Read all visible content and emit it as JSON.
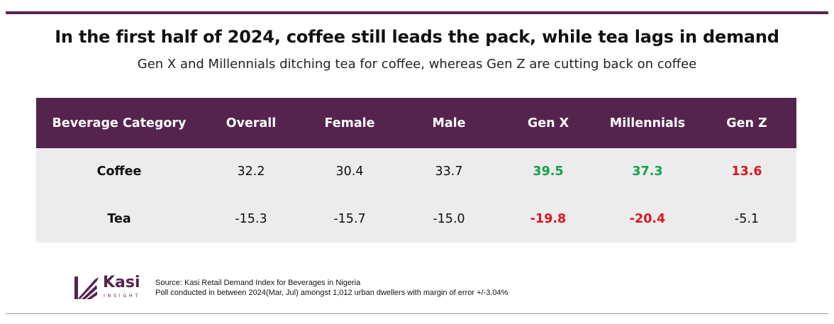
{
  "title": "In the first half of 2024, coffee still leads the pack, while tea lags in demand",
  "subtitle": "Gen X and Millennials ditching tea for coffee, whereas Gen Z are cutting back on coffee",
  "colors": {
    "header_bg": "#54244f",
    "body_bg": "#ececec",
    "positive_highlight": "#11a348",
    "negative_highlight": "#e0141f"
  },
  "chart_data": {
    "type": "table",
    "columns": [
      "Beverage Category",
      "Overall",
      "Female",
      "Male",
      "Gen X",
      "Millennials",
      "Gen Z"
    ],
    "rows": [
      {
        "label": "Coffee",
        "values": [
          "32.2",
          "30.4",
          "33.7",
          "39.5",
          "37.3",
          "13.6"
        ],
        "highlight": [
          "none",
          "none",
          "none",
          "positive",
          "positive",
          "negative"
        ]
      },
      {
        "label": "Tea",
        "values": [
          "-15.3",
          "-15.7",
          "-15.0",
          "-19.8",
          "-20.4",
          "-5.1"
        ],
        "highlight": [
          "none",
          "none",
          "none",
          "negative",
          "negative",
          "none"
        ]
      }
    ]
  },
  "footer": {
    "brand": "Kasi",
    "brand_sub": "INSIGHT",
    "source_line1": "Source: Kasi Retail Demand Index for Beverages in Nigeria",
    "source_line2": "Poll conducted  in between 2024(Mar, Jul) amongst 1,012 urban dwellers with margin of error +/-3.04%"
  }
}
